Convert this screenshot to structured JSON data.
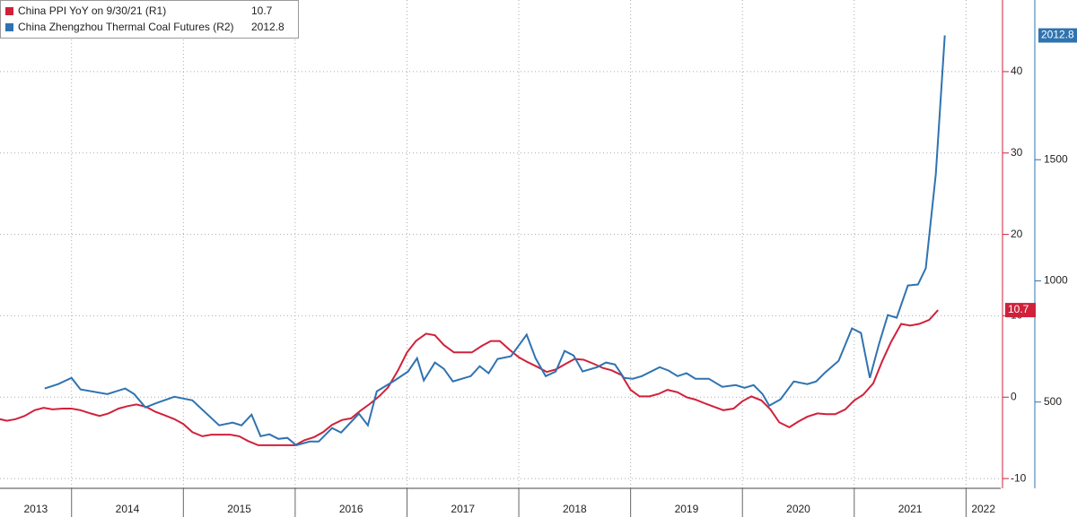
{
  "chart_data": {
    "type": "line",
    "xlim": [
      2013.36,
      2022.31
    ],
    "xticks": [
      2013,
      2014,
      2015,
      2016,
      2017,
      2018,
      2019,
      2020,
      2021,
      2022
    ],
    "ylim": [
      -11.2,
      48.8
    ],
    "yticks": [
      -10,
      0,
      10,
      20,
      30,
      40
    ],
    "y2lim": [
      144,
      2159
    ],
    "y2ticks": [
      500,
      1000,
      1500
    ],
    "grid": true,
    "legend": "upper left",
    "series": [
      {
        "name": "China PPI YoY on 9/30/21 (R1)",
        "color": "#d0213b",
        "axis": "y",
        "last_label": "10.7",
        "x": [
          2013.33,
          2013.42,
          2013.5,
          2013.58,
          2013.67,
          2013.75,
          2013.83,
          2013.92,
          2014,
          2014.08,
          2014.17,
          2014.25,
          2014.33,
          2014.42,
          2014.5,
          2014.58,
          2014.67,
          2014.75,
          2014.83,
          2014.92,
          2015,
          2015.08,
          2015.17,
          2015.25,
          2015.33,
          2015.42,
          2015.5,
          2015.58,
          2015.67,
          2015.75,
          2015.83,
          2015.92,
          2016,
          2016.08,
          2016.17,
          2016.25,
          2016.33,
          2016.42,
          2016.5,
          2016.58,
          2016.67,
          2016.75,
          2016.83,
          2016.92,
          2017,
          2017.08,
          2017.17,
          2017.25,
          2017.33,
          2017.42,
          2017.5,
          2017.58,
          2017.67,
          2017.75,
          2017.83,
          2017.92,
          2018,
          2018.08,
          2018.17,
          2018.25,
          2018.33,
          2018.42,
          2018.5,
          2018.58,
          2018.67,
          2018.75,
          2018.83,
          2018.92,
          2019,
          2019.08,
          2019.17,
          2019.25,
          2019.33,
          2019.42,
          2019.5,
          2019.58,
          2019.67,
          2019.75,
          2019.83,
          2019.92,
          2020,
          2020.08,
          2020.17,
          2020.25,
          2020.33,
          2020.42,
          2020.5,
          2020.58,
          2020.67,
          2020.75,
          2020.83,
          2020.92,
          2021,
          2021.08,
          2021.17,
          2021.25,
          2021.33,
          2021.42,
          2021.5,
          2021.58,
          2021.67,
          2021.75
        ],
        "values": [
          -2.6,
          -2.9,
          -2.7,
          -2.3,
          -1.6,
          -1.3,
          -1.5,
          -1.4,
          -1.4,
          -1.6,
          -2.0,
          -2.3,
          -2.0,
          -1.4,
          -1.1,
          -0.9,
          -1.2,
          -1.8,
          -2.2,
          -2.7,
          -3.3,
          -4.3,
          -4.8,
          -4.6,
          -4.6,
          -4.6,
          -4.8,
          -5.4,
          -5.9,
          -5.9,
          -5.9,
          -5.9,
          -5.9,
          -5.3,
          -4.9,
          -4.3,
          -3.4,
          -2.8,
          -2.6,
          -1.7,
          -0.8,
          0.1,
          1.2,
          3.3,
          5.5,
          6.9,
          7.8,
          7.6,
          6.4,
          5.5,
          5.5,
          5.5,
          6.3,
          6.9,
          6.9,
          5.8,
          4.9,
          4.3,
          3.7,
          3.1,
          3.4,
          4.1,
          4.7,
          4.6,
          4.1,
          3.6,
          3.3,
          2.7,
          0.9,
          0.1,
          0.1,
          0.4,
          0.9,
          0.6,
          0.0,
          -0.3,
          -0.8,
          -1.2,
          -1.6,
          -1.4,
          -0.5,
          0.1,
          -0.4,
          -1.5,
          -3.1,
          -3.7,
          -3.0,
          -2.4,
          -2.0,
          -2.1,
          -2.1,
          -1.5,
          -0.4,
          0.3,
          1.7,
          4.4,
          6.8,
          9.0,
          8.8,
          9.0,
          9.5,
          10.7
        ]
      },
      {
        "name": "China Zhengzhou Thermal Coal Futures (R2)",
        "color": "#2f73b0",
        "axis": "y2",
        "last_label": "2012.8",
        "x": [
          2013.76,
          2013.88,
          2014.0,
          2014.08,
          2014.32,
          2014.48,
          2014.56,
          2014.66,
          2014.76,
          2014.92,
          2015.08,
          2015.32,
          2015.44,
          2015.52,
          2015.61,
          2015.69,
          2015.77,
          2015.85,
          2015.93,
          2016.01,
          2016.13,
          2016.21,
          2016.33,
          2016.41,
          2016.57,
          2016.65,
          2016.73,
          2016.89,
          2017.01,
          2017.09,
          2017.15,
          2017.25,
          2017.33,
          2017.41,
          2017.57,
          2017.65,
          2017.73,
          2017.81,
          2017.93,
          2018.07,
          2018.15,
          2018.24,
          2018.33,
          2018.41,
          2018.49,
          2018.57,
          2018.7,
          2018.78,
          2018.86,
          2018.94,
          2019.02,
          2019.1,
          2019.26,
          2019.34,
          2019.42,
          2019.5,
          2019.58,
          2019.7,
          2019.82,
          2019.94,
          2020.02,
          2020.1,
          2020.18,
          2020.24,
          2020.34,
          2020.46,
          2020.58,
          2020.66,
          2020.74,
          2020.86,
          2020.98,
          2021.06,
          2021.14,
          2021.22,
          2021.3,
          2021.38,
          2021.48,
          2021.57,
          2021.64,
          2021.73,
          2021.81
        ],
        "values": [
          556,
          574,
          600,
          552,
          533,
          556,
          533,
          478,
          496,
          522,
          507,
          404,
          415,
          404,
          448,
          359,
          367,
          348,
          352,
          322,
          337,
          337,
          393,
          374,
          452,
          404,
          544,
          589,
          626,
          681,
          589,
          663,
          637,
          585,
          607,
          648,
          619,
          678,
          689,
          778,
          681,
          607,
          626,
          711,
          692,
          626,
          644,
          663,
          655,
          600,
          596,
          607,
          644,
          630,
          607,
          619,
          596,
          596,
          563,
          570,
          559,
          570,
          533,
          485,
          511,
          585,
          574,
          585,
          622,
          670,
          804,
          785,
          600,
          737,
          859,
          848,
          981,
          985,
          1052,
          1441,
          2012.8
        ]
      }
    ]
  }
}
